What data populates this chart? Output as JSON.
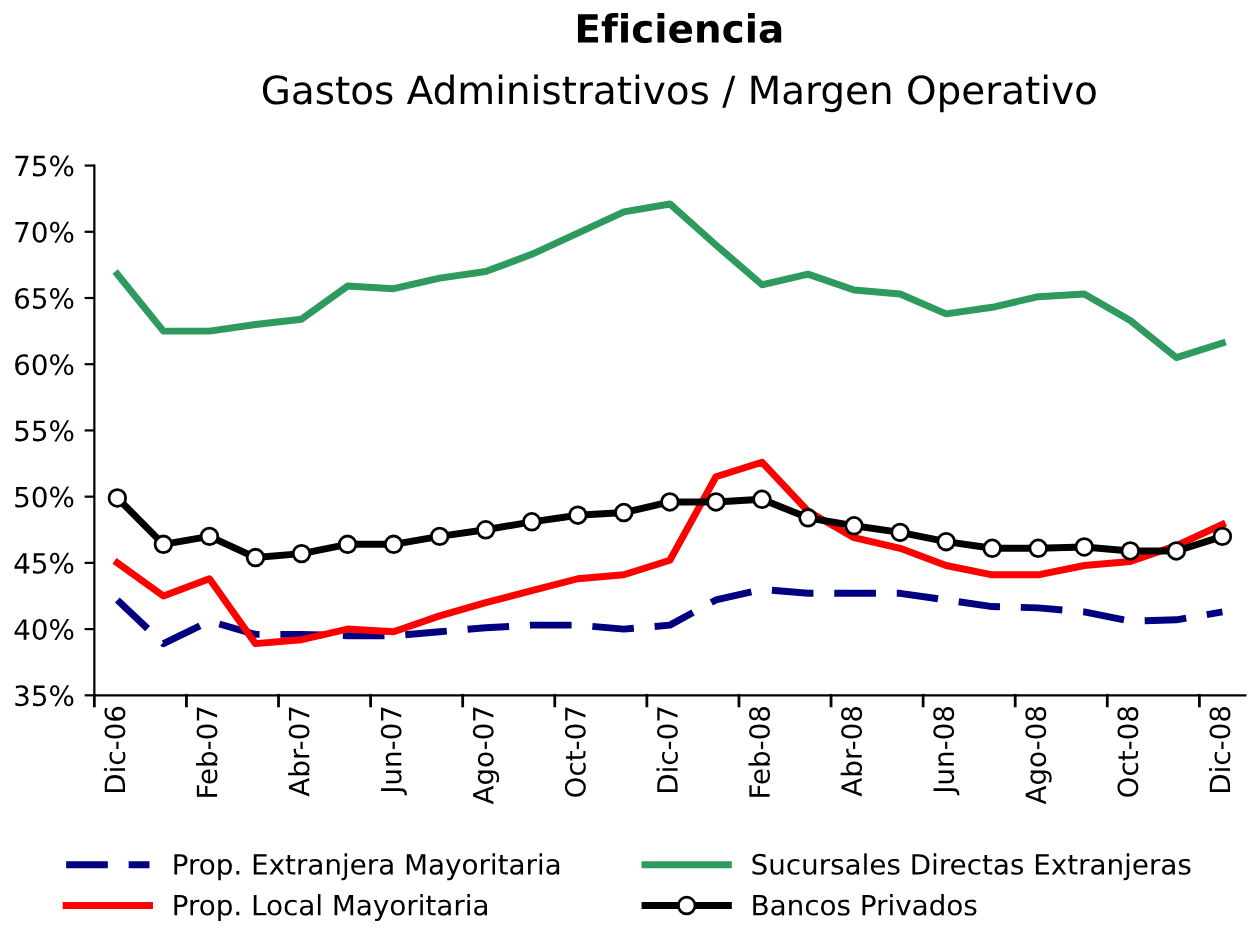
{
  "chart_data": {
    "type": "line",
    "title": "Eficiencia",
    "subtitle": "Gastos Administrativos / Margen Operativo",
    "categories": [
      "Dic-06",
      null,
      "Feb-07",
      null,
      "Abr-07",
      null,
      "Jun-07",
      null,
      "Ago-07",
      null,
      "Oct-07",
      null,
      "Dic-07",
      null,
      "Feb-08",
      null,
      "Abr-08",
      null,
      "Jun-08",
      null,
      "Ago-08",
      null,
      "Oct-08",
      null,
      "Dic-08"
    ],
    "series": [
      {
        "name": "Prop. Extranjera Mayoritaria",
        "color": "#000080",
        "line_style": "dashed",
        "marker": "none",
        "values": [
          42.2,
          38.9,
          40.6,
          39.6,
          39.6,
          39.5,
          39.5,
          39.8,
          40.1,
          40.3,
          40.3,
          40.0,
          40.3,
          42.2,
          43.0,
          42.7,
          42.7,
          42.7,
          42.2,
          41.7,
          41.6,
          41.3,
          40.6,
          40.7,
          41.3
        ]
      },
      {
        "name": "Prop. Local Mayoritaria",
        "color": "#ff0000",
        "line_style": "solid",
        "marker": "none",
        "values": [
          45.0,
          42.5,
          43.8,
          38.9,
          39.2,
          40.0,
          39.8,
          41.0,
          42.0,
          42.9,
          43.8,
          44.1,
          45.2,
          51.5,
          52.6,
          48.9,
          46.9,
          46.1,
          44.8,
          44.1,
          44.1,
          44.8,
          45.1,
          46.3,
          47.9
        ]
      },
      {
        "name": "Sucursales Directas Extranjeras",
        "color": "#2e9a5e",
        "line_style": "solid",
        "marker": "none",
        "values": [
          66.8,
          62.5,
          62.5,
          63.0,
          63.4,
          65.9,
          65.7,
          66.5,
          67.0,
          68.3,
          69.9,
          71.5,
          72.1,
          69.0,
          66.0,
          66.8,
          65.6,
          65.3,
          63.8,
          64.3,
          65.1,
          65.3,
          63.3,
          60.5,
          61.6
        ]
      },
      {
        "name": "Bancos Privados",
        "color": "#000000",
        "line_style": "solid",
        "marker": "circle",
        "values": [
          49.9,
          46.4,
          47.0,
          45.4,
          45.7,
          46.4,
          46.4,
          47.0,
          47.5,
          48.1,
          48.6,
          48.8,
          49.6,
          49.6,
          49.8,
          48.4,
          47.8,
          47.3,
          46.6,
          46.1,
          46.1,
          46.2,
          45.9,
          45.9,
          47.0
        ]
      }
    ],
    "ylim": [
      35,
      75
    ],
    "yticks": [
      {
        "value": 35,
        "label": "35%"
      },
      {
        "value": 40,
        "label": "40%"
      },
      {
        "value": 45,
        "label": "45%"
      },
      {
        "value": 50,
        "label": "50%"
      },
      {
        "value": 55,
        "label": "55%"
      },
      {
        "value": 60,
        "label": "60%"
      },
      {
        "value": 65,
        "label": "65%"
      },
      {
        "value": 70,
        "label": "70%"
      },
      {
        "value": 75,
        "label": "75%"
      }
    ],
    "grid": false,
    "legend": "bottom"
  }
}
